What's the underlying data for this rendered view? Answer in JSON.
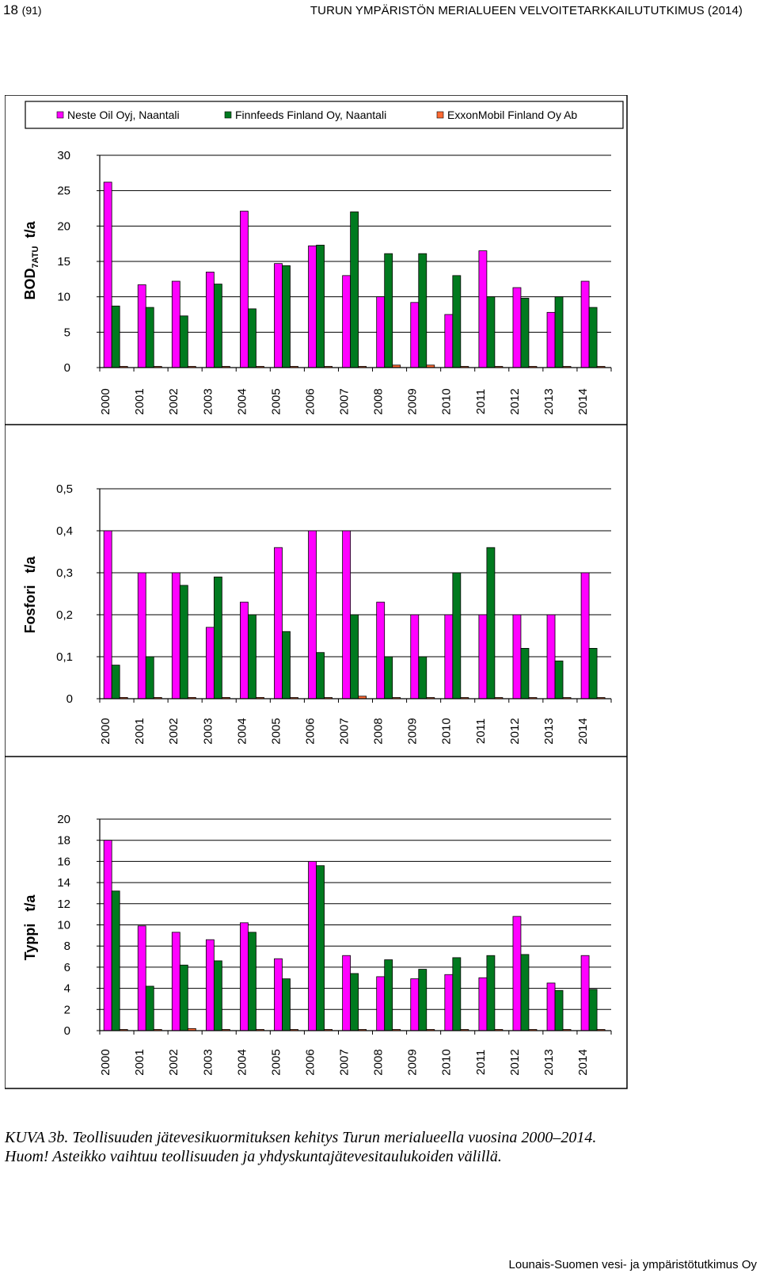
{
  "header": {
    "page_number": "18",
    "page_total": "(91)",
    "title": "TURUN YMPÄRISTÖN MERIALUEEN VELVOITETARKKAILUTUTKIMUS (2014)"
  },
  "legend": {
    "placement": "top",
    "items": [
      {
        "name": "Neste Oil Oyj, Naantali",
        "color": "#ff00ff"
      },
      {
        "name": "Finnfeeds Finland Oy, Naantali",
        "color": "#007a1f"
      },
      {
        "name": "ExxonMobil Finland Oy Ab",
        "color": "#ff6a33"
      }
    ]
  },
  "colors": {
    "series_neste": "#ff00ff",
    "series_finnfeeds": "#007a1f",
    "series_exxon": "#ff6a33",
    "gridline": "#000000",
    "frame": "#000000"
  },
  "chart_data": [
    {
      "type": "bar",
      "ylabel": "BOD",
      "ylabel_sub": "7ATU",
      "yunit": "t/a",
      "ylim": [
        0,
        30
      ],
      "yticks": [
        "0",
        "5",
        "10",
        "15",
        "20",
        "25",
        "30"
      ],
      "ytick_values": [
        0,
        5,
        10,
        15,
        20,
        25,
        30
      ],
      "grid": true,
      "categories": [
        "2000",
        "2001",
        "2002",
        "2003",
        "2004",
        "2005",
        "2006",
        "2007",
        "2008",
        "2009",
        "2010",
        "2011",
        "2012",
        "2013",
        "2014"
      ],
      "series": [
        {
          "name": "Neste Oil Oyj, Naantali",
          "values": [
            26.2,
            11.7,
            12.2,
            13.5,
            22.1,
            14.7,
            17.2,
            13.0,
            10.0,
            9.2,
            7.5,
            16.5,
            11.3,
            7.8,
            12.2
          ]
        },
        {
          "name": "Finnfeeds Finland Oy, Naantali",
          "values": [
            8.7,
            8.5,
            7.3,
            11.8,
            8.3,
            14.4,
            17.3,
            22.0,
            16.1,
            16.1,
            13.0,
            10.0,
            9.8,
            10.0,
            8.5
          ]
        },
        {
          "name": "ExxonMobil Finland Oy Ab",
          "values": [
            0.15,
            0.15,
            0.15,
            0.15,
            0.15,
            0.15,
            0.15,
            0.15,
            0.35,
            0.35,
            0.15,
            0.15,
            0.15,
            0.15,
            0.15
          ]
        }
      ]
    },
    {
      "type": "bar",
      "ylabel": "Fosfori",
      "ylabel_sub": "",
      "yunit": "t/a",
      "ylim": [
        0,
        0.5
      ],
      "yticks": [
        "0",
        "0,1",
        "0,2",
        "0,3",
        "0,4",
        "0,5"
      ],
      "ytick_values": [
        0,
        0.1,
        0.2,
        0.3,
        0.4,
        0.5
      ],
      "grid": true,
      "categories": [
        "2000",
        "2001",
        "2002",
        "2003",
        "2004",
        "2005",
        "2006",
        "2007",
        "2008",
        "2009",
        "2010",
        "2011",
        "2012",
        "2013",
        "2014"
      ],
      "series": [
        {
          "name": "Neste Oil Oyj, Naantali",
          "values": [
            0.4,
            0.3,
            0.3,
            0.17,
            0.23,
            0.36,
            0.4,
            0.4,
            0.23,
            0.2,
            0.2,
            0.2,
            0.2,
            0.2,
            0.3
          ]
        },
        {
          "name": "Finnfeeds Finland Oy, Naantali",
          "values": [
            0.08,
            0.1,
            0.27,
            0.29,
            0.2,
            0.16,
            0.11,
            0.2,
            0.1,
            0.1,
            0.3,
            0.36,
            0.12,
            0.09,
            0.12
          ]
        },
        {
          "name": "ExxonMobil Finland Oy Ab",
          "values": [
            0.003,
            0.003,
            0.003,
            0.003,
            0.003,
            0.001,
            0.001,
            0.006,
            0.001,
            0.001,
            0.002,
            0.002,
            0.002,
            0.002,
            0.002
          ]
        }
      ]
    },
    {
      "type": "bar",
      "ylabel": "Typpi",
      "ylabel_sub": "",
      "yunit": "t/a",
      "ylim": [
        0,
        20
      ],
      "yticks": [
        "0",
        "2",
        "4",
        "6",
        "8",
        "10",
        "12",
        "14",
        "16",
        "18",
        "20"
      ],
      "ytick_values": [
        0,
        2,
        4,
        6,
        8,
        10,
        12,
        14,
        16,
        18,
        20
      ],
      "grid": true,
      "categories": [
        "2000",
        "2001",
        "2002",
        "2003",
        "2004",
        "2005",
        "2006",
        "2007",
        "2008",
        "2009",
        "2010",
        "2011",
        "2012",
        "2013",
        "2014"
      ],
      "series": [
        {
          "name": "Neste Oil Oyj, Naantali",
          "values": [
            18.0,
            9.9,
            9.3,
            8.6,
            10.2,
            6.8,
            16.0,
            7.1,
            5.1,
            4.9,
            5.3,
            5.0,
            10.8,
            4.5,
            7.1
          ]
        },
        {
          "name": "Finnfeeds Finland Oy, Naantali",
          "values": [
            13.2,
            4.2,
            6.2,
            6.6,
            9.3,
            4.9,
            15.6,
            5.4,
            6.7,
            5.8,
            6.9,
            7.1,
            7.2,
            3.8,
            3.9
          ]
        },
        {
          "name": "ExxonMobil Finland Oy Ab",
          "values": [
            0.1,
            0.1,
            0.2,
            0.1,
            0.1,
            0.1,
            0.1,
            0.1,
            0.1,
            0.1,
            0.1,
            0.1,
            0.1,
            0.1,
            0.1
          ]
        }
      ]
    }
  ],
  "caption": {
    "line1": "KUVA 3b. Teollisuuden jätevesikuormituksen kehitys Turun merialueella vuosina 2000–2014.",
    "line2": "Huom! Asteikko vaihtuu teollisuuden ja yhdyskuntajätevesitaulukoiden välillä."
  },
  "footer": {
    "text": "Lounais-Suomen vesi- ja ympäristötutkimus Oy"
  }
}
